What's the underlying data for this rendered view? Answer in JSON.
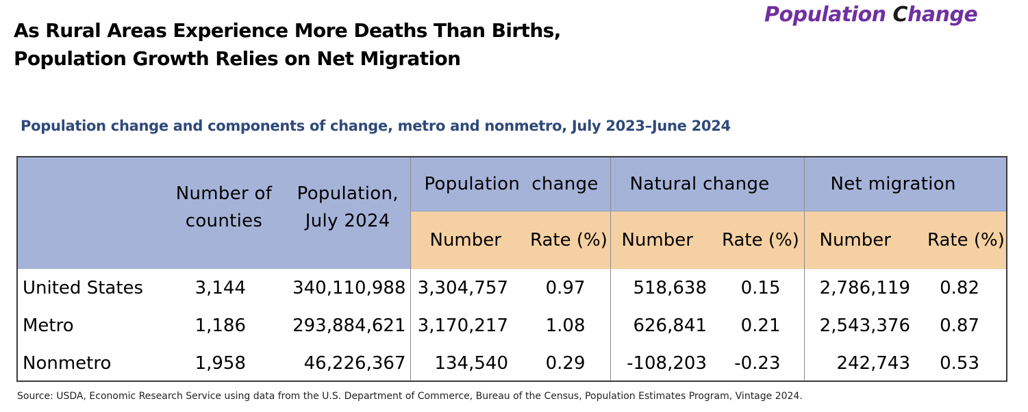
{
  "brand": {
    "part1": "Population ",
    "part2": "C",
    "part3": "hange"
  },
  "headline": {
    "line1": "As Rural Areas Experience More Deaths Than Births,",
    "line2": "Population Growth Relies on Net Migration"
  },
  "subtitle": "Population change and components of change, metro and nonmetro, July 2023–June 2024",
  "table": {
    "headers": {
      "counties_line1": "Number of",
      "counties_line2": "counties",
      "population_line1": "Population,",
      "population_line2": "July 2024",
      "population_change": "Population  change",
      "natural_change": "Natural change",
      "net_migration": "Net migration",
      "number": "Number",
      "rate": "Rate (%)"
    },
    "rows": [
      {
        "label": "United States",
        "counties": "3,144",
        "population": "340,110,988",
        "pop_change_number": "3,304,757",
        "pop_change_rate": "0.97",
        "natural_number": "518,638",
        "natural_rate": "0.15",
        "migration_number": "2,786,119",
        "migration_rate": "0.82"
      },
      {
        "label": "Metro",
        "counties": "1,186",
        "population": "293,884,621",
        "pop_change_number": "3,170,217",
        "pop_change_rate": "1.08",
        "natural_number": "626,841",
        "natural_rate": "0.21",
        "migration_number": "2,543,376",
        "migration_rate": "0.87"
      },
      {
        "label": "Nonmetro",
        "counties": "1,958",
        "population": "46,226,367",
        "pop_change_number": "134,540",
        "pop_change_rate": "0.29",
        "natural_number": "-108,203",
        "natural_rate": "-0.23",
        "migration_number": "242,743",
        "migration_rate": "0.53"
      }
    ]
  },
  "source": "Source: USDA, Economic Research Service using data from the U.S. Department of Commerce, Bureau of the Census, Population Estimates  Program, Vintage 2024.",
  "colors": {
    "brand_purple": "#7030a0",
    "subtitle_blue": "#2e4a7a",
    "header_blue": "#a6b3d9",
    "header_tan": "#f5d0a2"
  }
}
